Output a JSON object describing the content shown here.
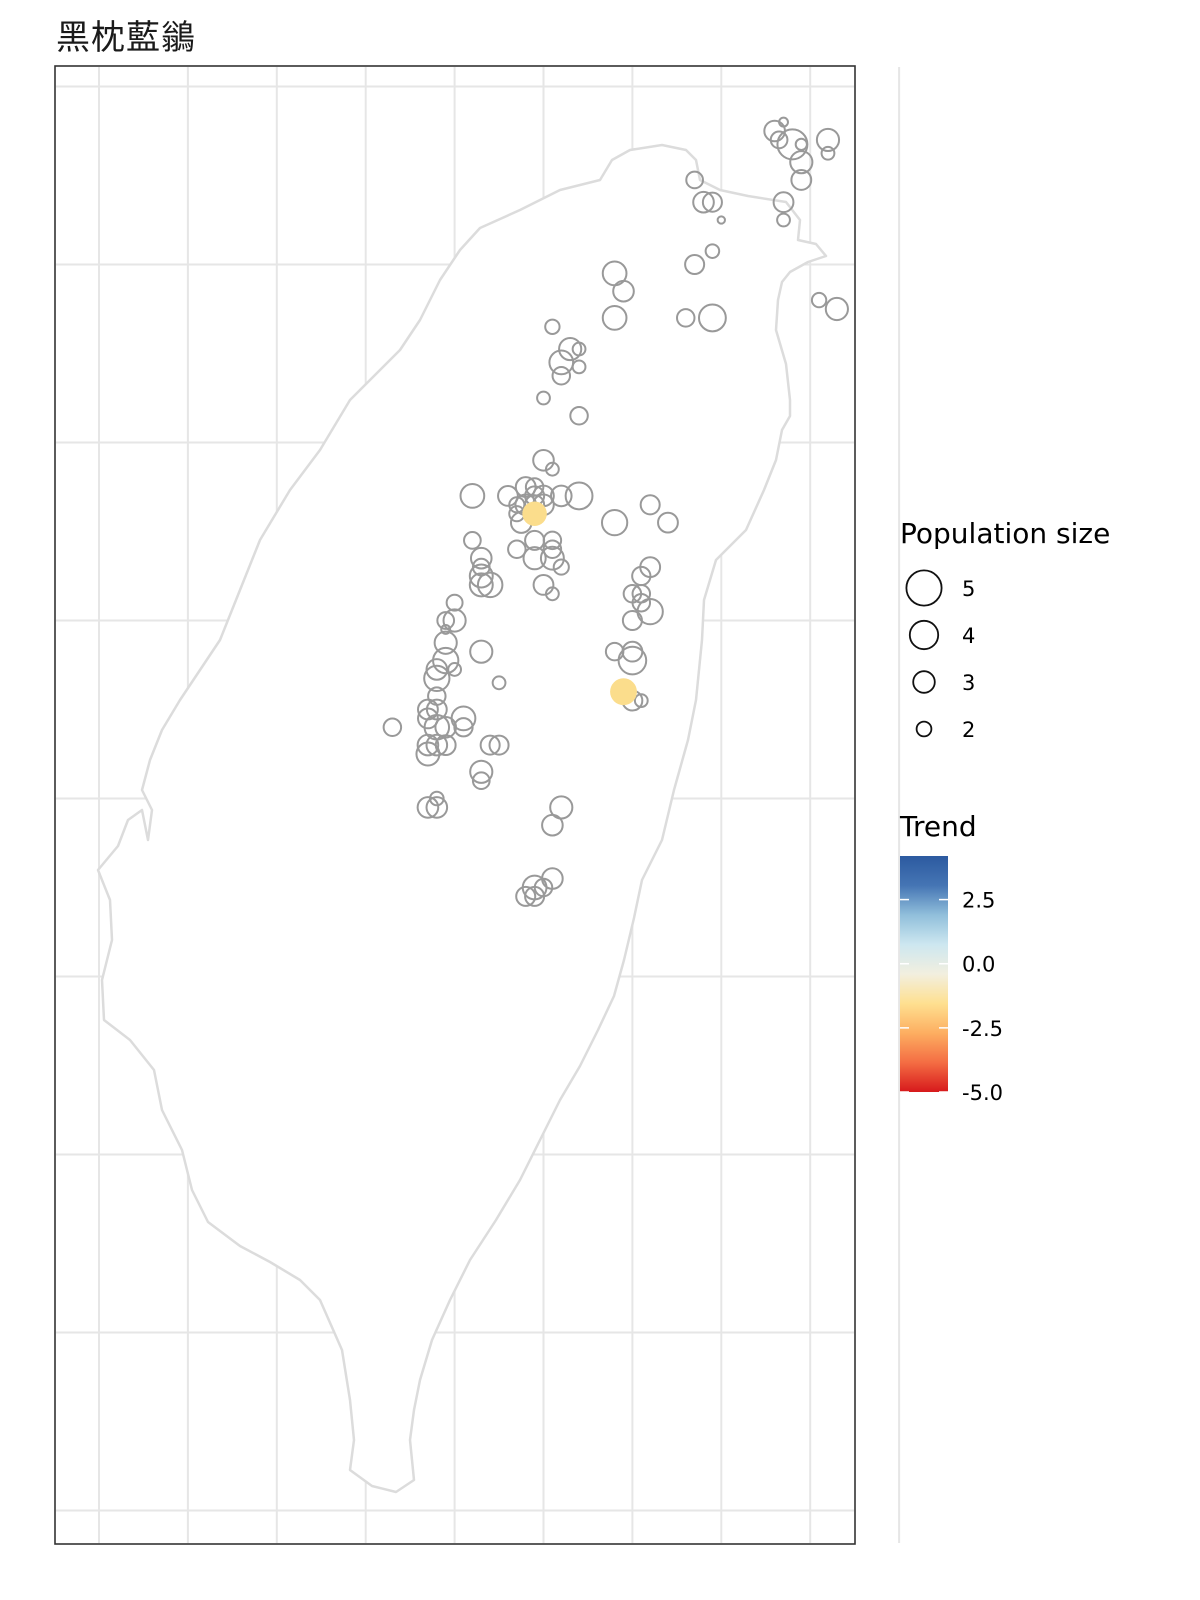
{
  "title": "黑枕藍鶲",
  "legend": {
    "size_title": "Population size",
    "size_levels": [
      {
        "label": "5",
        "value": 5
      },
      {
        "label": "4",
        "value": 4
      },
      {
        "label": "3",
        "value": 3
      },
      {
        "label": "2",
        "value": 2
      }
    ],
    "trend_title": "Trend",
    "trend_ticks": [
      {
        "label": "2.5",
        "value": 2.5
      },
      {
        "label": "0.0",
        "value": 0.0
      },
      {
        "label": "-2.5",
        "value": -2.5
      },
      {
        "label": "-5.0",
        "value": -5.0
      }
    ],
    "trend_range": [
      -5.0,
      4.2
    ],
    "trend_colors": [
      "#d7191c",
      "#f46d43",
      "#fdae61",
      "#fee090",
      "#f2efdf",
      "#cde7f0",
      "#91bfdb",
      "#4575b4",
      "#2c5aa0"
    ]
  },
  "colors": {
    "site_stroke": "#999999",
    "grid": "#e6e6e6",
    "coast": "#dcdcdc",
    "panel_border": "#333333",
    "decline_fill": "#fbdd8c"
  },
  "chart_data": {
    "type": "scatter",
    "title": "黑枕藍鶲",
    "size_variable": "Population size",
    "color_variable": "Trend",
    "sites": [
      {
        "x": 121.52,
        "y": 25.1,
        "size": 3.0
      },
      {
        "x": 121.53,
        "y": 25.08,
        "size": 2.5
      },
      {
        "x": 121.54,
        "y": 25.12,
        "size": 1.5
      },
      {
        "x": 121.56,
        "y": 25.07,
        "size": 4.2
      },
      {
        "x": 121.58,
        "y": 25.07,
        "size": 1.8
      },
      {
        "x": 121.58,
        "y": 25.03,
        "size": 3.2
      },
      {
        "x": 121.58,
        "y": 24.99,
        "size": 2.9
      },
      {
        "x": 121.54,
        "y": 24.94,
        "size": 2.9
      },
      {
        "x": 121.54,
        "y": 24.9,
        "size": 2.0
      },
      {
        "x": 121.64,
        "y": 25.08,
        "size": 3.2
      },
      {
        "x": 121.64,
        "y": 25.05,
        "size": 2.0
      },
      {
        "x": 121.34,
        "y": 24.99,
        "size": 2.5
      },
      {
        "x": 121.36,
        "y": 24.94,
        "size": 3.0
      },
      {
        "x": 121.38,
        "y": 24.94,
        "size": 2.8
      },
      {
        "x": 121.4,
        "y": 24.9,
        "size": 1.3
      },
      {
        "x": 121.38,
        "y": 24.83,
        "size": 2.1
      },
      {
        "x": 121.34,
        "y": 24.8,
        "size": 2.8
      },
      {
        "x": 121.62,
        "y": 24.72,
        "size": 2.2
      },
      {
        "x": 121.66,
        "y": 24.7,
        "size": 3.2
      },
      {
        "x": 121.32,
        "y": 24.68,
        "size": 2.6
      },
      {
        "x": 121.38,
        "y": 24.68,
        "size": 3.8
      },
      {
        "x": 121.16,
        "y": 24.78,
        "size": 3.4
      },
      {
        "x": 121.18,
        "y": 24.74,
        "size": 3.0
      },
      {
        "x": 121.16,
        "y": 24.68,
        "size": 3.4
      },
      {
        "x": 121.02,
        "y": 24.66,
        "size": 2.2
      },
      {
        "x": 121.06,
        "y": 24.61,
        "size": 3.2
      },
      {
        "x": 121.08,
        "y": 24.61,
        "size": 2.0
      },
      {
        "x": 121.04,
        "y": 24.58,
        "size": 3.4
      },
      {
        "x": 121.08,
        "y": 24.57,
        "size": 2.0
      },
      {
        "x": 121.04,
        "y": 24.55,
        "size": 2.6
      },
      {
        "x": 121.0,
        "y": 24.5,
        "size": 2.0
      },
      {
        "x": 121.08,
        "y": 24.46,
        "size": 2.6
      },
      {
        "x": 121.0,
        "y": 24.36,
        "size": 3.0
      },
      {
        "x": 121.02,
        "y": 24.34,
        "size": 2.0
      },
      {
        "x": 120.96,
        "y": 24.3,
        "size": 2.9
      },
      {
        "x": 120.98,
        "y": 24.3,
        "size": 2.6
      },
      {
        "x": 120.98,
        "y": 24.28,
        "size": 2.8
      },
      {
        "x": 121.0,
        "y": 24.28,
        "size": 3.0
      },
      {
        "x": 120.92,
        "y": 24.28,
        "size": 2.9
      },
      {
        "x": 121.04,
        "y": 24.28,
        "size": 3.0
      },
      {
        "x": 121.08,
        "y": 24.28,
        "size": 3.8
      },
      {
        "x": 120.94,
        "y": 24.26,
        "size": 2.3
      },
      {
        "x": 120.94,
        "y": 24.24,
        "size": 2.3
      },
      {
        "x": 120.96,
        "y": 24.26,
        "size": 3.0
      },
      {
        "x": 120.98,
        "y": 24.26,
        "size": 2.8
      },
      {
        "x": 121.0,
        "y": 24.26,
        "size": 3.0
      },
      {
        "x": 120.84,
        "y": 24.28,
        "size": 3.4
      },
      {
        "x": 120.95,
        "y": 24.22,
        "size": 3.0
      },
      {
        "x": 120.84,
        "y": 24.18,
        "size": 2.5
      },
      {
        "x": 120.98,
        "y": 24.18,
        "size": 2.8
      },
      {
        "x": 121.02,
        "y": 24.18,
        "size": 2.6
      },
      {
        "x": 121.02,
        "y": 24.16,
        "size": 2.6
      },
      {
        "x": 120.94,
        "y": 24.16,
        "size": 2.6
      },
      {
        "x": 120.98,
        "y": 24.14,
        "size": 3.2
      },
      {
        "x": 121.02,
        "y": 24.14,
        "size": 3.3
      },
      {
        "x": 121.04,
        "y": 24.12,
        "size": 2.3
      },
      {
        "x": 120.86,
        "y": 24.14,
        "size": 3.0
      },
      {
        "x": 120.86,
        "y": 24.12,
        "size": 2.5
      },
      {
        "x": 120.86,
        "y": 24.1,
        "size": 3.3
      },
      {
        "x": 120.86,
        "y": 24.08,
        "size": 3.3
      },
      {
        "x": 120.88,
        "y": 24.08,
        "size": 3.5
      },
      {
        "x": 121.0,
        "y": 24.08,
        "size": 2.9
      },
      {
        "x": 121.16,
        "y": 24.22,
        "size": 3.6
      },
      {
        "x": 121.24,
        "y": 24.26,
        "size": 2.8
      },
      {
        "x": 121.28,
        "y": 24.22,
        "size": 2.9
      },
      {
        "x": 121.24,
        "y": 24.12,
        "size": 2.9
      },
      {
        "x": 121.22,
        "y": 24.1,
        "size": 2.7
      },
      {
        "x": 121.2,
        "y": 24.06,
        "size": 2.6
      },
      {
        "x": 121.22,
        "y": 24.06,
        "size": 2.6
      },
      {
        "x": 121.22,
        "y": 24.04,
        "size": 2.6
      },
      {
        "x": 121.24,
        "y": 24.02,
        "size": 3.6
      },
      {
        "x": 121.2,
        "y": 24.0,
        "size": 2.8
      },
      {
        "x": 121.02,
        "y": 24.06,
        "size": 2.0
      },
      {
        "x": 120.8,
        "y": 24.04,
        "size": 2.4
      },
      {
        "x": 120.78,
        "y": 24.0,
        "size": 2.5
      },
      {
        "x": 120.8,
        "y": 24.0,
        "size": 3.2
      },
      {
        "x": 120.78,
        "y": 23.98,
        "size": 1.5
      },
      {
        "x": 120.78,
        "y": 23.95,
        "size": 3.2
      },
      {
        "x": 120.86,
        "y": 23.93,
        "size": 3.2
      },
      {
        "x": 120.78,
        "y": 23.91,
        "size": 3.6
      },
      {
        "x": 120.76,
        "y": 23.89,
        "size": 3.0
      },
      {
        "x": 120.8,
        "y": 23.89,
        "size": 2.0
      },
      {
        "x": 120.76,
        "y": 23.87,
        "size": 3.6
      },
      {
        "x": 120.9,
        "y": 23.86,
        "size": 2.0
      },
      {
        "x": 121.16,
        "y": 23.93,
        "size": 2.6
      },
      {
        "x": 121.2,
        "y": 23.93,
        "size": 2.9
      },
      {
        "x": 121.2,
        "y": 23.91,
        "size": 3.9
      },
      {
        "x": 120.76,
        "y": 23.83,
        "size": 2.6
      },
      {
        "x": 120.74,
        "y": 23.8,
        "size": 2.9
      },
      {
        "x": 120.76,
        "y": 23.8,
        "size": 2.9
      },
      {
        "x": 120.74,
        "y": 23.78,
        "size": 2.9
      },
      {
        "x": 120.76,
        "y": 23.76,
        "size": 3.5
      },
      {
        "x": 120.78,
        "y": 23.76,
        "size": 3.0
      },
      {
        "x": 120.82,
        "y": 23.78,
        "size": 3.4
      },
      {
        "x": 120.82,
        "y": 23.76,
        "size": 2.7
      },
      {
        "x": 120.66,
        "y": 23.76,
        "size": 2.6
      },
      {
        "x": 120.74,
        "y": 23.72,
        "size": 3.0
      },
      {
        "x": 120.76,
        "y": 23.72,
        "size": 3.0
      },
      {
        "x": 120.78,
        "y": 23.72,
        "size": 2.9
      },
      {
        "x": 120.74,
        "y": 23.7,
        "size": 3.3
      },
      {
        "x": 120.88,
        "y": 23.72,
        "size": 2.8
      },
      {
        "x": 120.9,
        "y": 23.72,
        "size": 2.8
      },
      {
        "x": 121.2,
        "y": 23.82,
        "size": 2.9
      },
      {
        "x": 121.22,
        "y": 23.82,
        "size": 2.0
      },
      {
        "x": 120.86,
        "y": 23.66,
        "size": 3.2
      },
      {
        "x": 120.86,
        "y": 23.64,
        "size": 2.5
      },
      {
        "x": 120.76,
        "y": 23.6,
        "size": 2.1
      },
      {
        "x": 120.76,
        "y": 23.58,
        "size": 3.0
      },
      {
        "x": 120.74,
        "y": 23.58,
        "size": 3.0
      },
      {
        "x": 121.04,
        "y": 23.58,
        "size": 3.2
      },
      {
        "x": 121.02,
        "y": 23.54,
        "size": 3.0
      },
      {
        "x": 121.02,
        "y": 23.42,
        "size": 3.0
      },
      {
        "x": 120.98,
        "y": 23.4,
        "size": 3.4
      },
      {
        "x": 121.0,
        "y": 23.4,
        "size": 2.6
      },
      {
        "x": 120.96,
        "y": 23.38,
        "size": 2.8
      },
      {
        "x": 120.98,
        "y": 23.38,
        "size": 2.8
      },
      {
        "x": 120.98,
        "y": 24.24,
        "size": 3.5,
        "trend": -1.0
      },
      {
        "x": 121.18,
        "y": 23.84,
        "size": 3.8,
        "trend": -1.0
      }
    ]
  }
}
